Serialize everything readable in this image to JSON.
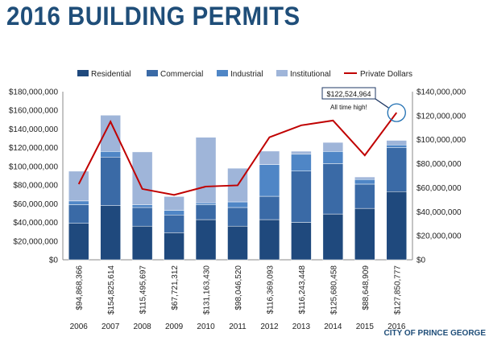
{
  "page": {
    "title": "2016 BUILDING PERMITS",
    "credit": "CITY OF PRINCE GEORGE"
  },
  "chart_data": {
    "type": "bar",
    "stacked": true,
    "categories": [
      "2006",
      "2007",
      "2008",
      "2009",
      "2010",
      "2011",
      "2012",
      "2013",
      "2014",
      "2015",
      "2016"
    ],
    "totals_labels": [
      "$94,868,366",
      "$154,825,614",
      "$115,495,697",
      "$67,721,312",
      "$131,163,430",
      "$98,046,520",
      "$116,369,093",
      "$116,243,448",
      "$125,680,458",
      "$88,648,909",
      "$127,850,777"
    ],
    "series": [
      {
        "name": "Residential",
        "color": "#1f497d",
        "values": [
          39000000,
          58000000,
          36000000,
          29000000,
          43000000,
          36000000,
          43000000,
          40000000,
          49000000,
          55000000,
          73000000
        ]
      },
      {
        "name": "Commercial",
        "color": "#3a6aa6",
        "values": [
          20000000,
          52000000,
          20000000,
          19000000,
          16000000,
          20000000,
          25000000,
          55000000,
          54000000,
          26000000,
          47000000
        ]
      },
      {
        "name": "Industrial",
        "color": "#4f86c6",
        "values": [
          4000000,
          6000000,
          3000000,
          5000000,
          2000000,
          6000000,
          34000000,
          18000000,
          13000000,
          5000000,
          3000000
        ]
      },
      {
        "name": "Institutional",
        "color": "#9fb5d9",
        "values": [
          31868366,
          38825614,
          56495697,
          14721312,
          70163430,
          36046520,
          14369093,
          3243448,
          9680458,
          2648909,
          4850777
        ]
      }
    ],
    "line_series": {
      "name": "Private Dollars",
      "color": "#c00000",
      "axis": "right",
      "values": [
        63000000,
        115000000,
        59000000,
        54000000,
        61000000,
        62000000,
        102000000,
        112000000,
        116000000,
        87000000,
        122524964
      ]
    },
    "left_axis": {
      "min": 0,
      "max": 180000000,
      "step": 20000000,
      "tick_labels": [
        "$0",
        "$20,000,000",
        "$40,000,000",
        "$60,000,000",
        "$80,000,000",
        "$100,000,000",
        "$120,000,000",
        "$140,000,000",
        "$160,000,000",
        "$180,000,000"
      ]
    },
    "right_axis": {
      "min": 0,
      "max": 140000000,
      "step": 20000000,
      "tick_labels": [
        "$0",
        "$20,000,000",
        "$40,000,000",
        "$60,000,000",
        "$80,000,000",
        "$100,000,000",
        "$120,000,000",
        "$140,000,000"
      ]
    },
    "annotation": {
      "value_label": "$122,524,964",
      "note": "All time high!",
      "category_index": 10
    },
    "legend_position": "top",
    "grid": false
  }
}
